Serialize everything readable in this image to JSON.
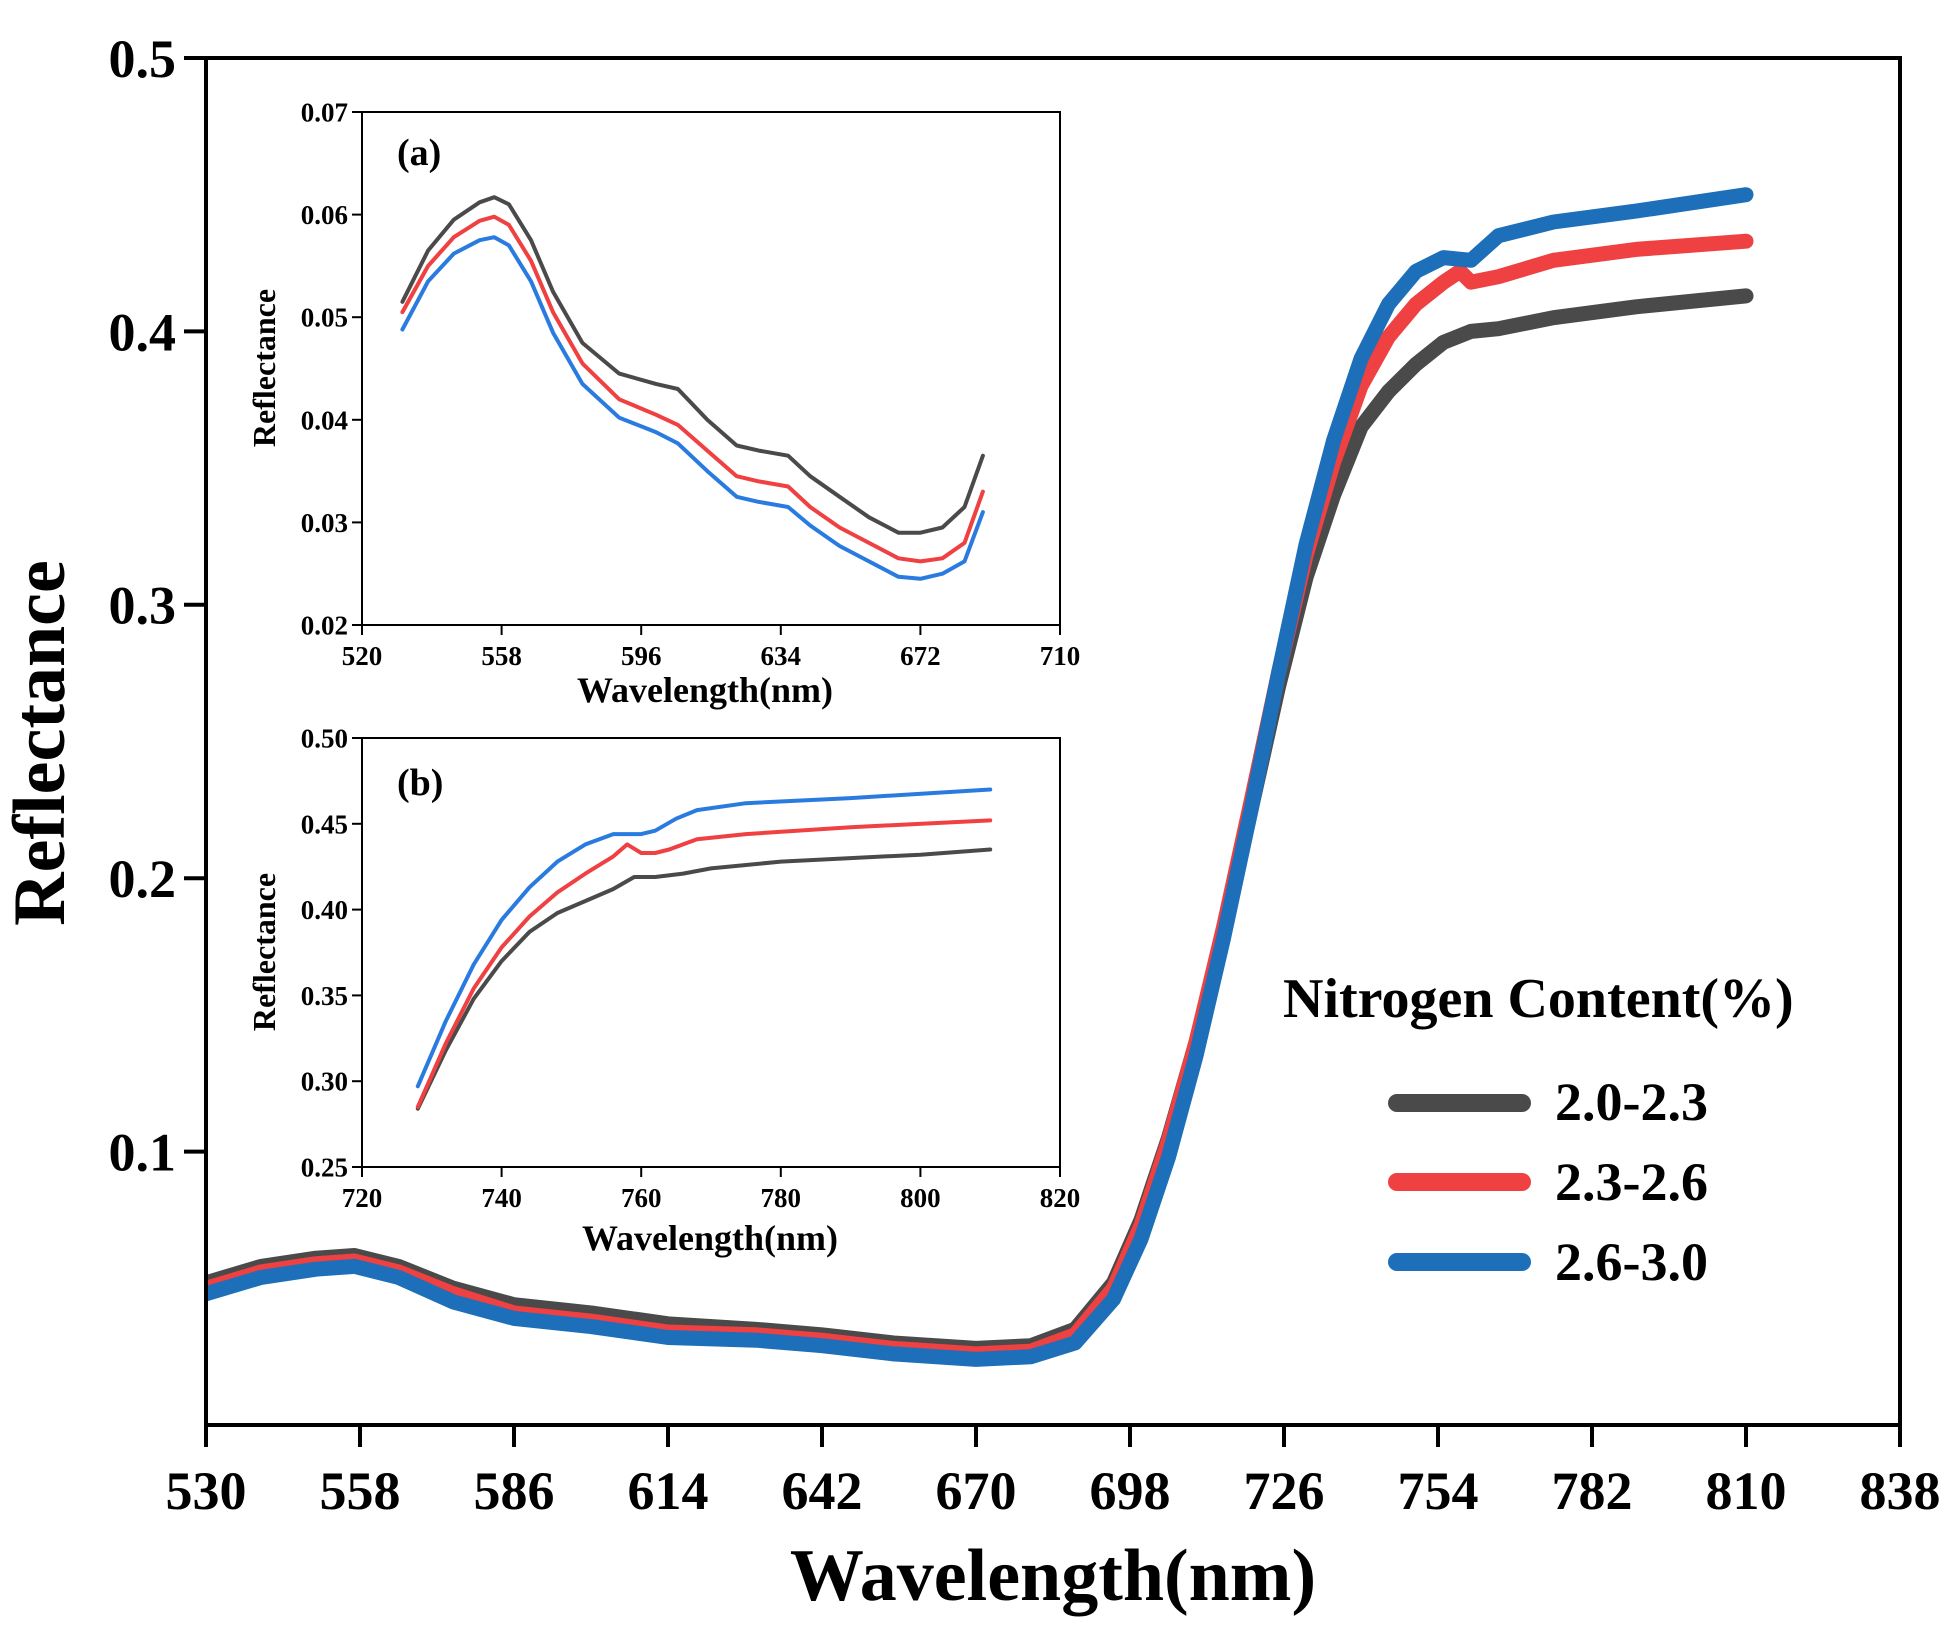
{
  "colors": {
    "series_2_0_2_3": "#4a4a4a",
    "series_2_3_2_6": "#ef4042",
    "series_2_6_3_0": "#1c6fb8",
    "inset_2_6_3_0": "#2a7be0",
    "axis": "#000000"
  },
  "chart_data": [
    {
      "id": "main",
      "type": "line",
      "xlabel": "Wavelength(nm)",
      "ylabel": "Reflectance",
      "xlim": [
        530,
        838
      ],
      "ylim": [
        0,
        0.5
      ],
      "xticks": [
        "530",
        "558",
        "586",
        "614",
        "642",
        "670",
        "698",
        "726",
        "754",
        "782",
        "810",
        "838"
      ],
      "yticks": [
        "0.1",
        "0.2",
        "0.3",
        "0.4",
        "0.5"
      ],
      "legend": {
        "title": "Nitrogen Content(%)",
        "position": "right",
        "entries": [
          "2.0-2.3",
          "2.3-2.6",
          "2.6-3.0"
        ]
      },
      "series": [
        {
          "name": "2.0-2.3",
          "x": [
            530,
            540,
            550,
            557,
            565,
            575,
            586,
            600,
            614,
            630,
            642,
            655,
            670,
            680,
            688,
            695,
            700,
            705,
            710,
            715,
            720,
            725,
            730,
            735,
            740,
            745,
            750,
            755,
            760,
            765,
            775,
            790,
            810
          ],
          "y": [
            0.052,
            0.058,
            0.061,
            0.062,
            0.058,
            0.05,
            0.044,
            0.041,
            0.037,
            0.035,
            0.033,
            0.03,
            0.028,
            0.029,
            0.035,
            0.052,
            0.075,
            0.105,
            0.14,
            0.18,
            0.225,
            0.27,
            0.31,
            0.34,
            0.365,
            0.378,
            0.388,
            0.396,
            0.4,
            0.401,
            0.405,
            0.409,
            0.413
          ]
        },
        {
          "name": "2.3-2.6",
          "x": [
            530,
            540,
            550,
            557,
            565,
            575,
            586,
            600,
            614,
            630,
            642,
            655,
            670,
            680,
            688,
            695,
            700,
            705,
            710,
            715,
            720,
            725,
            730,
            735,
            740,
            745,
            750,
            755,
            758,
            760,
            765,
            775,
            790,
            810
          ],
          "y": [
            0.05,
            0.056,
            0.059,
            0.06,
            0.056,
            0.048,
            0.041,
            0.038,
            0.034,
            0.033,
            0.031,
            0.028,
            0.026,
            0.027,
            0.033,
            0.05,
            0.073,
            0.104,
            0.14,
            0.182,
            0.228,
            0.275,
            0.318,
            0.352,
            0.38,
            0.398,
            0.41,
            0.418,
            0.422,
            0.418,
            0.42,
            0.426,
            0.43,
            0.433
          ]
        },
        {
          "name": "2.6-3.0",
          "x": [
            530,
            540,
            550,
            557,
            565,
            575,
            586,
            600,
            614,
            630,
            642,
            655,
            670,
            680,
            688,
            695,
            700,
            705,
            710,
            715,
            720,
            725,
            730,
            735,
            740,
            745,
            750,
            755,
            760,
            765,
            775,
            790,
            810
          ],
          "y": [
            0.048,
            0.054,
            0.057,
            0.058,
            0.054,
            0.045,
            0.039,
            0.036,
            0.032,
            0.031,
            0.029,
            0.026,
            0.024,
            0.025,
            0.03,
            0.046,
            0.068,
            0.098,
            0.135,
            0.178,
            0.225,
            0.275,
            0.322,
            0.36,
            0.39,
            0.41,
            0.422,
            0.427,
            0.426,
            0.435,
            0.44,
            0.444,
            0.45
          ]
        }
      ]
    },
    {
      "id": "inset_a",
      "type": "line",
      "label": "(a)",
      "xlabel": "Wavelength(nm)",
      "ylabel": "Reflectance",
      "xlim": [
        520,
        710
      ],
      "ylim": [
        0.02,
        0.07
      ],
      "xticks": [
        "520",
        "558",
        "596",
        "634",
        "672",
        "710"
      ],
      "yticks": [
        "0.02",
        "0.03",
        "0.04",
        "0.05",
        "0.06",
        "0.07"
      ],
      "series": [
        {
          "name": "2.0-2.3",
          "x": [
            531,
            538,
            545,
            552,
            556,
            560,
            566,
            572,
            580,
            590,
            600,
            606,
            614,
            622,
            628,
            636,
            642,
            650,
            658,
            666,
            672,
            678,
            684,
            689
          ],
          "y": [
            0.0515,
            0.0565,
            0.0595,
            0.0612,
            0.0617,
            0.061,
            0.0575,
            0.0525,
            0.0475,
            0.0445,
            0.0435,
            0.043,
            0.04,
            0.0375,
            0.037,
            0.0365,
            0.0345,
            0.0325,
            0.0305,
            0.029,
            0.029,
            0.0295,
            0.0315,
            0.0365
          ]
        },
        {
          "name": "2.3-2.6",
          "x": [
            531,
            538,
            545,
            552,
            556,
            560,
            566,
            572,
            580,
            590,
            600,
            606,
            614,
            622,
            628,
            636,
            642,
            650,
            658,
            666,
            672,
            678,
            684,
            689
          ],
          "y": [
            0.0505,
            0.055,
            0.0578,
            0.0594,
            0.0598,
            0.059,
            0.0555,
            0.0505,
            0.0455,
            0.042,
            0.0405,
            0.0395,
            0.037,
            0.0345,
            0.034,
            0.0335,
            0.0315,
            0.0295,
            0.028,
            0.0265,
            0.0262,
            0.0265,
            0.028,
            0.033
          ]
        },
        {
          "name": "2.6-3.0",
          "x": [
            531,
            538,
            545,
            552,
            556,
            560,
            566,
            572,
            580,
            590,
            600,
            606,
            614,
            622,
            628,
            636,
            642,
            650,
            658,
            666,
            672,
            678,
            684,
            689
          ],
          "y": [
            0.0488,
            0.0535,
            0.0562,
            0.0575,
            0.0578,
            0.057,
            0.0535,
            0.0485,
            0.0435,
            0.0402,
            0.0388,
            0.0377,
            0.035,
            0.0325,
            0.032,
            0.0315,
            0.0297,
            0.0277,
            0.0262,
            0.0247,
            0.0245,
            0.025,
            0.0262,
            0.031
          ]
        }
      ]
    },
    {
      "id": "inset_b",
      "type": "line",
      "label": "(b)",
      "xlabel": "Wavelength(nm)",
      "ylabel": "Reflectance",
      "xlim": [
        720,
        820
      ],
      "ylim": [
        0.25,
        0.5
      ],
      "xticks": [
        "720",
        "740",
        "760",
        "780",
        "800",
        "820"
      ],
      "yticks": [
        "0.25",
        "0.30",
        "0.35",
        "0.40",
        "0.45",
        "0.50"
      ],
      "series": [
        {
          "name": "2.0-2.3",
          "x": [
            728,
            732,
            736,
            740,
            744,
            748,
            752,
            756,
            759,
            762,
            766,
            770,
            780,
            790,
            800,
            810
          ],
          "y": [
            0.284,
            0.318,
            0.348,
            0.37,
            0.387,
            0.398,
            0.405,
            0.412,
            0.419,
            0.419,
            0.421,
            0.424,
            0.428,
            0.43,
            0.432,
            0.435
          ]
        },
        {
          "name": "2.3-2.6",
          "x": [
            728,
            732,
            736,
            740,
            744,
            748,
            752,
            756,
            758,
            760,
            762,
            764,
            768,
            775,
            790,
            810
          ],
          "y": [
            0.285,
            0.322,
            0.354,
            0.378,
            0.396,
            0.41,
            0.421,
            0.431,
            0.438,
            0.433,
            0.433,
            0.435,
            0.441,
            0.444,
            0.448,
            0.452
          ]
        },
        {
          "name": "2.6-3.0",
          "x": [
            728,
            732,
            736,
            740,
            744,
            748,
            752,
            756,
            760,
            762,
            765,
            768,
            775,
            790,
            810
          ],
          "y": [
            0.297,
            0.335,
            0.368,
            0.394,
            0.413,
            0.428,
            0.438,
            0.444,
            0.444,
            0.446,
            0.453,
            0.458,
            0.462,
            0.465,
            0.47
          ]
        }
      ]
    }
  ]
}
